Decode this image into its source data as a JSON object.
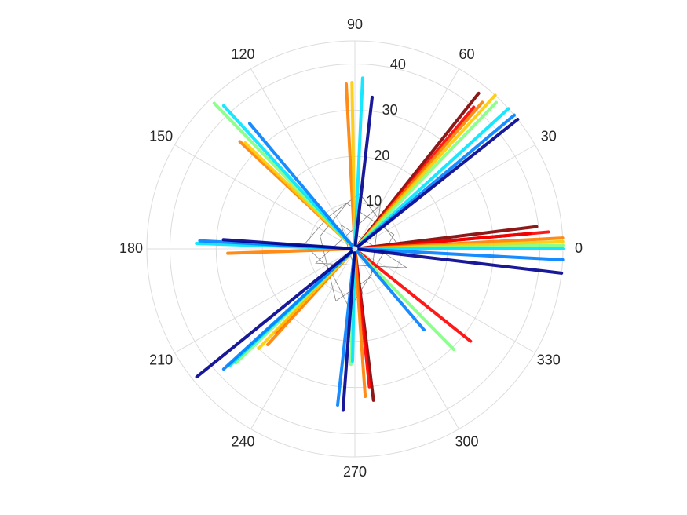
{
  "chart_data": {
    "type": "polar",
    "rlim": [
      0,
      45
    ],
    "rticks": [
      10,
      20,
      30,
      40
    ],
    "thetaticks": [
      0,
      30,
      60,
      90,
      120,
      150,
      180,
      210,
      240,
      270,
      300,
      330
    ],
    "grid": true,
    "web": {
      "color": "#808080",
      "theta": [
        0,
        40,
        85,
        130,
        175,
        220,
        265,
        315,
        20,
        100,
        160,
        250,
        300,
        60,
        200,
        340,
        120,
        280
      ],
      "r": [
        10,
        8,
        12,
        9,
        11,
        7,
        13,
        6,
        9,
        10,
        8,
        12,
        7,
        11,
        9,
        12,
        6,
        10
      ]
    },
    "series": [
      {
        "color": "#800000",
        "theta": [
          7,
          51.5,
          277,
          5
        ],
        "r": [
          39.6,
          43,
          33,
          38
        ]
      },
      {
        "color": "#ff0000",
        "theta": [
          5,
          50,
          226.6,
          321.4,
          276
        ],
        "r": [
          42,
          40,
          25,
          32,
          30
        ]
      },
      {
        "color": "#ff8000",
        "theta": [
          3,
          93,
          137,
          182,
          227.7,
          274,
          49
        ],
        "r": [
          45,
          35.7,
          34,
          27.5,
          28,
          32,
          42
        ]
      },
      {
        "color": "#ffcc00",
        "theta": [
          2,
          47.6,
          91,
          136,
          226
        ],
        "r": [
          45,
          45,
          36,
          33,
          30
        ]
      },
      {
        "color": "#80ff80",
        "theta": [
          1,
          134,
          223.8,
          314.5,
          46,
          268
        ],
        "r": [
          45,
          43.8,
          35.7,
          30.5,
          44,
          25
        ]
      },
      {
        "color": "#00e5ff",
        "theta": [
          0,
          42.4,
          87.4,
          132.5,
          178,
          268.8,
          223
        ],
        "r": [
          45,
          45,
          37,
          42,
          34.3,
          24.3,
          37
        ]
      },
      {
        "color": "#0080ff",
        "theta": [
          357,
          40,
          130,
          177,
          222.5,
          263.7,
          310.5
        ],
        "r": [
          45,
          45,
          35.4,
          33.6,
          38.5,
          34,
          23
        ]
      },
      {
        "color": "#00008f",
        "theta": [
          353.3,
          38.5,
          83.5,
          176,
          219,
          265.8
        ],
        "r": [
          45,
          45,
          33,
          28.5,
          44,
          35
        ]
      }
    ]
  }
}
